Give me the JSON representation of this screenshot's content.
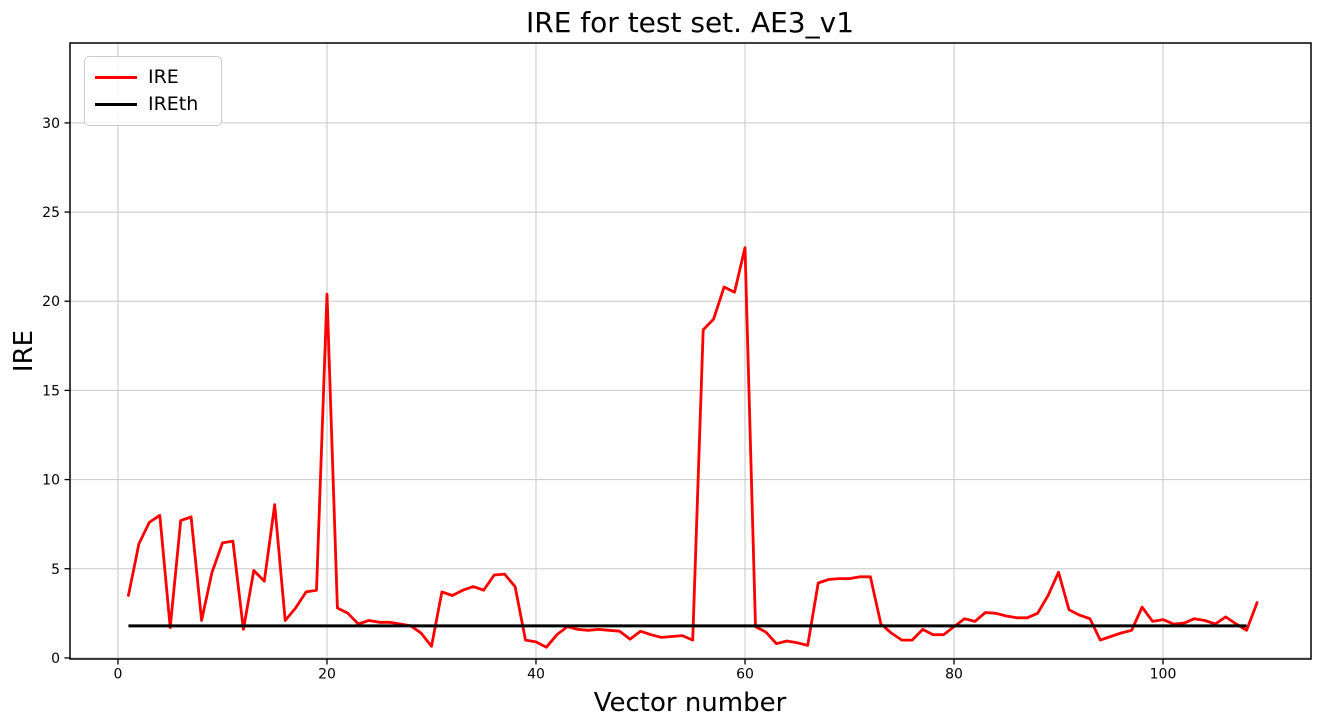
{
  "chart_data": {
    "type": "line",
    "title": "IRE for test set. AE3_v1",
    "xlabel": "Vector number",
    "ylabel": "IRE",
    "grid": true,
    "legend_position": "upper left",
    "x_ticks": [
      0,
      20,
      40,
      60,
      80,
      100
    ],
    "y_ticks": [
      0,
      5,
      10,
      15,
      20,
      25,
      30
    ],
    "xlim": [
      -4.59,
      114.16
    ],
    "ylim": [
      -0.06,
      34.48
    ],
    "colors": {
      "ire": "#ff0000",
      "ireth": "#000000",
      "grid": "#c8c8c8",
      "spine": "#000000",
      "text": "#000000"
    },
    "series": [
      {
        "name": "IRE",
        "color": "#ff0000",
        "x_start": 1,
        "values": [
          3.5,
          6.4,
          7.6,
          8.0,
          1.7,
          7.7,
          7.9,
          2.1,
          4.8,
          6.45,
          6.55,
          1.6,
          4.9,
          4.3,
          8.6,
          2.1,
          2.8,
          3.7,
          3.8,
          20.4,
          2.8,
          2.5,
          1.9,
          2.1,
          2.0,
          2.0,
          1.9,
          1.8,
          1.4,
          0.65,
          3.7,
          3.5,
          3.8,
          4.0,
          3.8,
          4.65,
          4.7,
          4.0,
          1.0,
          0.9,
          0.6,
          1.3,
          1.75,
          1.6,
          1.55,
          1.6,
          1.55,
          1.5,
          1.05,
          1.5,
          1.3,
          1.15,
          1.2,
          1.25,
          1.0,
          18.4,
          19.0,
          20.8,
          20.5,
          23.0,
          1.75,
          1.45,
          0.8,
          0.95,
          0.85,
          0.7,
          4.2,
          4.4,
          4.45,
          4.45,
          4.55,
          4.55,
          1.9,
          1.4,
          1.0,
          1.0,
          1.6,
          1.3,
          1.3,
          1.75,
          2.2,
          2.05,
          2.55,
          2.5,
          2.35,
          2.25,
          2.25,
          2.5,
          3.5,
          4.8,
          2.7,
          2.4,
          2.2,
          1.0,
          1.2,
          1.4,
          1.55,
          2.85,
          2.05,
          2.15,
          1.9,
          1.95,
          2.2,
          2.1,
          1.9,
          2.3,
          1.9,
          1.55,
          3.1
        ]
      },
      {
        "name": "IREth",
        "color": "#000000",
        "x": [
          1,
          108
        ],
        "values": [
          1.8,
          1.8
        ]
      }
    ]
  }
}
